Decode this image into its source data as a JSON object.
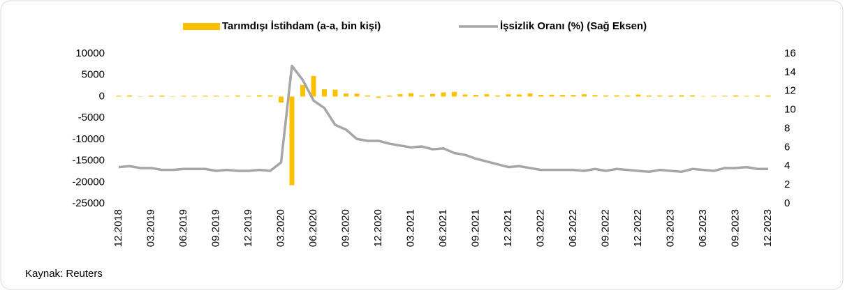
{
  "chart_data": {
    "type": "bar_line",
    "source": "Kaynak: Reuters",
    "categories": [
      "12.2018",
      null,
      null,
      "03.2019",
      null,
      null,
      "06.2019",
      null,
      null,
      "09.2019",
      null,
      null,
      "12.2019",
      null,
      null,
      "03.2020",
      null,
      null,
      "06.2020",
      null,
      null,
      "09.2020",
      null,
      null,
      "12.2020",
      null,
      null,
      "03.2021",
      null,
      null,
      "06.2021",
      null,
      null,
      "09.2021",
      null,
      null,
      "12.2021",
      null,
      null,
      "03.2022",
      null,
      null,
      "06.2022",
      null,
      null,
      "09.2022",
      null,
      null,
      "12.2022",
      null,
      null,
      "03.2023",
      null,
      null,
      "06.2023",
      null,
      null,
      "09.2023",
      null,
      null,
      "12.2023"
    ],
    "series": [
      {
        "name": "Tarımdışı İstihdam (a-a, bin kişi)",
        "color": "#FFC000",
        "kind": "bar",
        "values": [
          200,
          270,
          50,
          190,
          220,
          70,
          180,
          160,
          200,
          190,
          150,
          250,
          150,
          300,
          270,
          -1400,
          -20700,
          2700,
          4800,
          1700,
          1600,
          700,
          680,
          260,
          -300,
          230,
          540,
          780,
          270,
          610,
          960,
          1090,
          480,
          380,
          530,
          250,
          510,
          480,
          710,
          400,
          430,
          380,
          370,
          520,
          350,
          260,
          290,
          260,
          470,
          250,
          250,
          220,
          300,
          280,
          100,
          150,
          180,
          280,
          150,
          200,
          220
        ]
      },
      {
        "name": "İşsizlik Oranı (%) (Sağ Eksen)",
        "color": "#A6A6A6",
        "kind": "line",
        "axis": "y2",
        "values": [
          3.9,
          4.0,
          3.8,
          3.8,
          3.6,
          3.6,
          3.7,
          3.7,
          3.7,
          3.5,
          3.6,
          3.5,
          3.5,
          3.6,
          3.5,
          4.4,
          14.7,
          13.2,
          11.0,
          10.2,
          8.4,
          7.9,
          6.9,
          6.7,
          6.7,
          6.4,
          6.2,
          6.0,
          6.1,
          5.8,
          5.9,
          5.4,
          5.2,
          4.8,
          4.5,
          4.2,
          3.9,
          4.0,
          3.8,
          3.6,
          3.6,
          3.6,
          3.6,
          3.5,
          3.7,
          3.5,
          3.7,
          3.6,
          3.5,
          3.4,
          3.6,
          3.5,
          3.4,
          3.7,
          3.6,
          3.5,
          3.8,
          3.8,
          3.9,
          3.7,
          3.7
        ]
      }
    ],
    "ylim": [
      -25000,
      10000
    ],
    "yticks": [
      -25000,
      -20000,
      -15000,
      -10000,
      -5000,
      0,
      5000,
      10000
    ],
    "y2lim": [
      0,
      16
    ],
    "y2ticks": [
      0,
      2,
      4,
      6,
      8,
      10,
      12,
      14,
      16
    ],
    "grid": false
  }
}
